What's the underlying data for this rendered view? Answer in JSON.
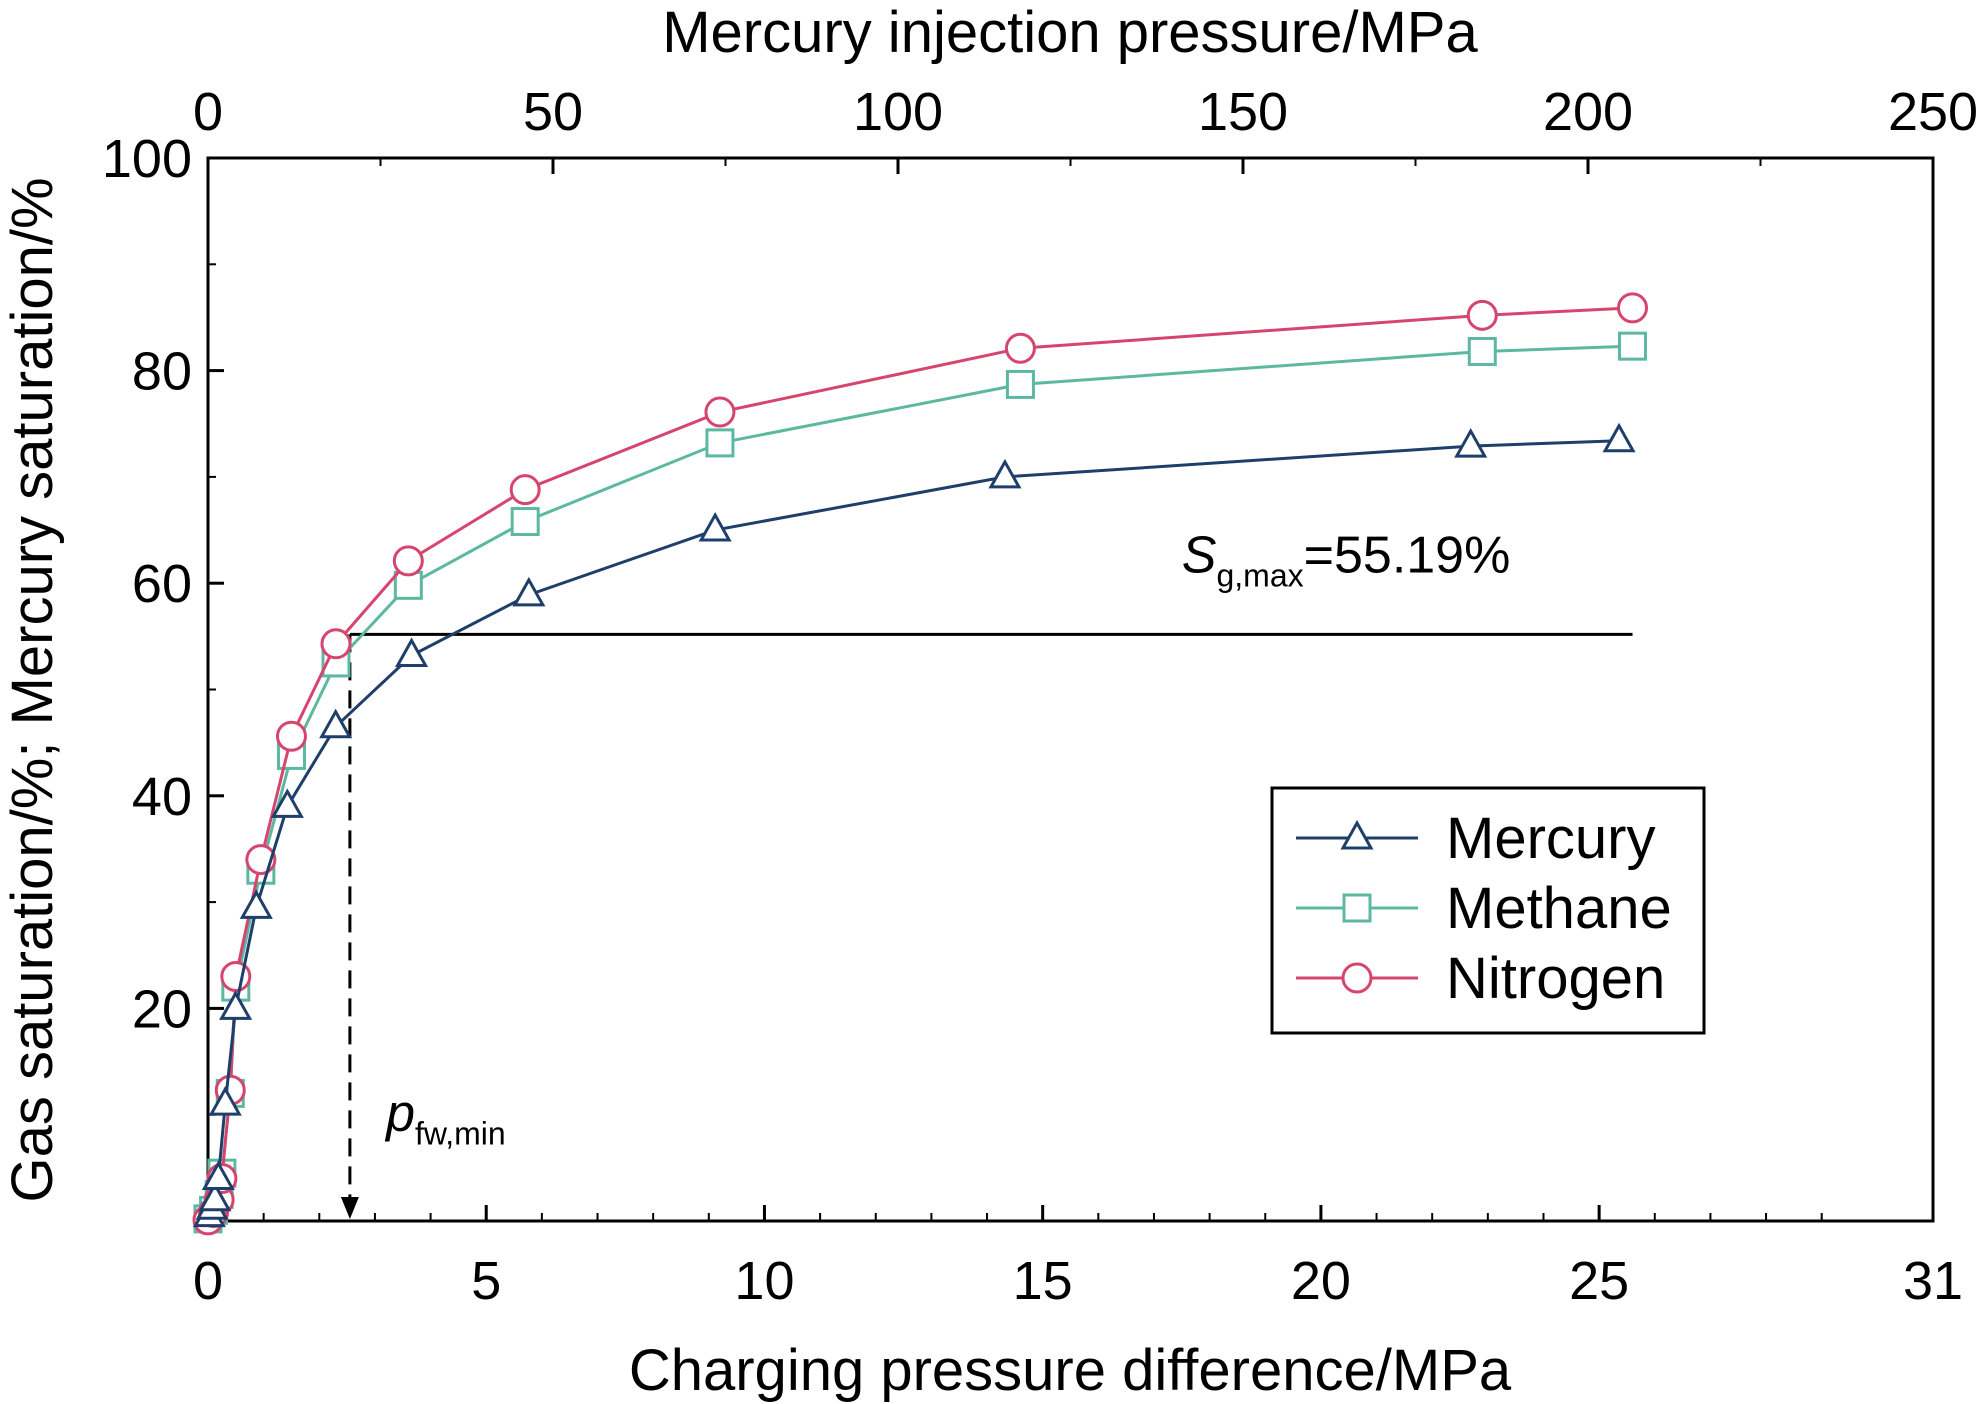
{
  "chart_data": {
    "type": "line",
    "title": "",
    "xlabel": "Charging pressure difference/MPa",
    "x2label": "Mercury injection pressure/MPa",
    "ylabel": "Gas saturation/%; Mercury saturation/%",
    "xlim": [
      0,
      31
    ],
    "x2lim": [
      0,
      250
    ],
    "ylim": [
      0,
      100
    ],
    "x_ticks": [
      "0",
      "5",
      "10",
      "15",
      "20",
      "25",
      "31"
    ],
    "x2_ticks": [
      "0",
      "50",
      "100",
      "150",
      "200",
      "250"
    ],
    "y_ticks": [
      "20",
      "40",
      "60",
      "80",
      "100"
    ],
    "grid": false,
    "legend_position": "middle-right",
    "series": [
      {
        "name": "Mercury",
        "color": "#1f3f6b",
        "marker": "triangle",
        "axis": "top",
        "points": [
          [
            0.2,
            0.5
          ],
          [
            0.6,
            1.2
          ],
          [
            1.0,
            2.0
          ],
          [
            1.5,
            4.0
          ],
          [
            2.5,
            11.0
          ],
          [
            4.0,
            20.0
          ],
          [
            7.0,
            29.5
          ],
          [
            11.5,
            39.0
          ],
          [
            18.5,
            46.5
          ],
          [
            29.5,
            53.2
          ],
          [
            46.5,
            58.9
          ],
          [
            73.5,
            65.0
          ],
          [
            115.5,
            70.0
          ],
          [
            183.0,
            72.9
          ],
          [
            204.5,
            73.4
          ]
        ]
      },
      {
        "name": "Methane",
        "color": "#5cb8a0",
        "marker": "square",
        "axis": "bottom",
        "points": [
          [
            0.0,
            0.2
          ],
          [
            0.1,
            1.0
          ],
          [
            0.2,
            2.5
          ],
          [
            0.25,
            4.5
          ],
          [
            0.4,
            12.0
          ],
          [
            0.5,
            22.0
          ],
          [
            0.95,
            33.0
          ],
          [
            1.5,
            43.8
          ],
          [
            2.3,
            52.5
          ],
          [
            3.6,
            59.8
          ],
          [
            5.7,
            65.8
          ],
          [
            9.2,
            73.2
          ],
          [
            14.6,
            78.7
          ],
          [
            22.9,
            81.8
          ],
          [
            25.6,
            82.3
          ]
        ]
      },
      {
        "name": "Nitrogen",
        "color": "#d6456d",
        "marker": "circle",
        "axis": "bottom",
        "points": [
          [
            0.0,
            0.1
          ],
          [
            0.1,
            0.8
          ],
          [
            0.2,
            2.0
          ],
          [
            0.25,
            4.0
          ],
          [
            0.4,
            12.3
          ],
          [
            0.5,
            23.0
          ],
          [
            0.95,
            34.0
          ],
          [
            1.5,
            45.6
          ],
          [
            2.3,
            54.3
          ],
          [
            3.6,
            62.1
          ],
          [
            5.7,
            68.8
          ],
          [
            9.2,
            76.1
          ],
          [
            14.6,
            82.1
          ],
          [
            22.9,
            85.2
          ],
          [
            25.6,
            85.9
          ]
        ]
      }
    ],
    "annotations": [
      {
        "type": "hline",
        "axis": "bottom",
        "y": 55.19,
        "x_from": 2.55,
        "x_to": 25.6
      },
      {
        "type": "dashed-arrow",
        "axis": "bottom",
        "x": 2.55,
        "y_from": 55.19,
        "y_to": 0
      },
      {
        "id": "sg",
        "main": "S",
        "sub": "g,max",
        "tail": "=55.19%",
        "x": 17.5,
        "y": 61
      },
      {
        "id": "pfw",
        "main": "p",
        "sub": "fw,min",
        "tail": "",
        "x": 3.2,
        "y": 8.5
      }
    ]
  }
}
